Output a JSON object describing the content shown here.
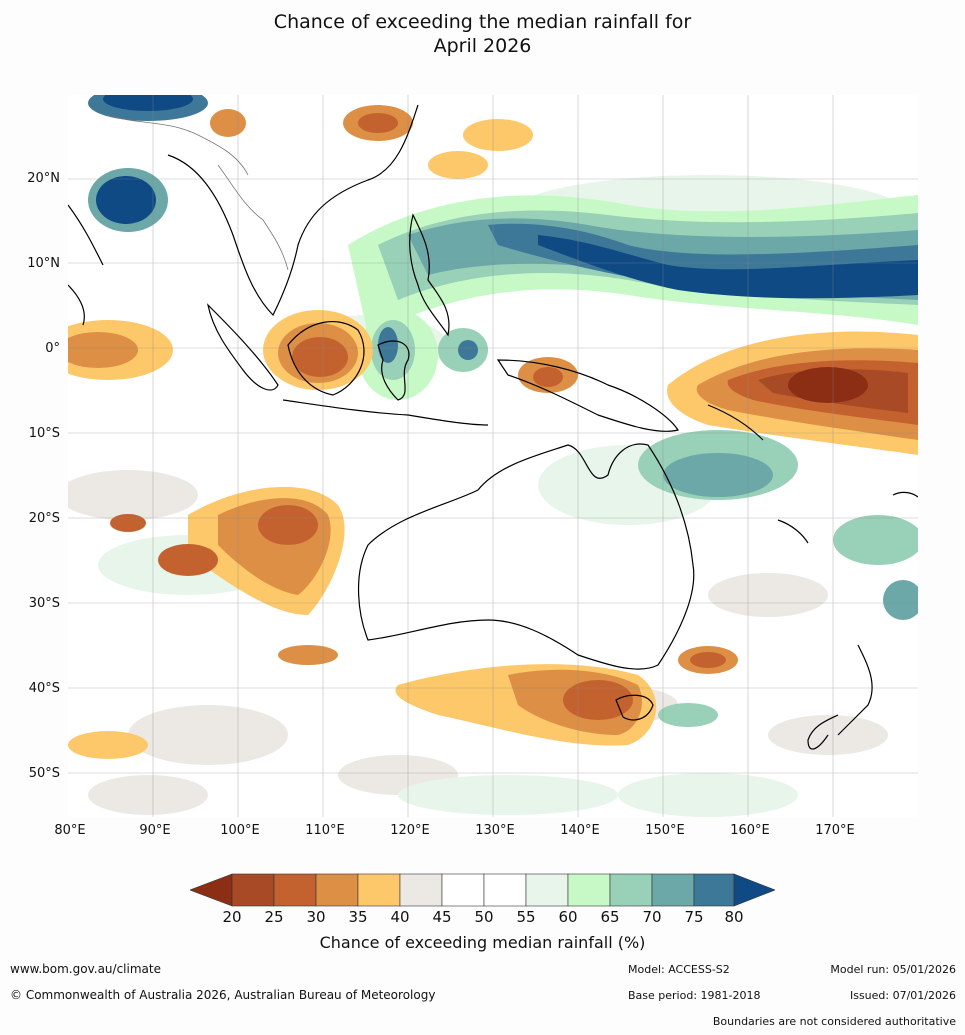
{
  "title": {
    "line1": "Chance of exceeding the median rainfall for",
    "line2": "April 2026"
  },
  "axes": {
    "latitude_labels": [
      "20°N",
      "10°N",
      "0°",
      "10°S",
      "20°S",
      "30°S",
      "40°S",
      "50°S"
    ],
    "longitude_labels": [
      "80°E",
      "90°E",
      "100°E",
      "110°E",
      "120°E",
      "130°E",
      "140°E",
      "150°E",
      "160°E",
      "170°E"
    ]
  },
  "colorbar": {
    "title": "Chance of exceeding median rainfall (%)",
    "ticks": [
      "20",
      "25",
      "30",
      "35",
      "40",
      "45",
      "50",
      "55",
      "60",
      "65",
      "70",
      "75",
      "80"
    ],
    "colors": [
      "#8b2e14",
      "#a84a25",
      "#c4622f",
      "#dc8f45",
      "#fdc86a",
      "#ece9e4",
      "#ffffff",
      "#ffffff",
      "#e8f5ea",
      "#c7f9c6",
      "#98d0b8",
      "#6ba8a7",
      "#3e7898",
      "#0f4a85"
    ]
  },
  "map_colors": {
    "dry_strong": "#a84a25",
    "dry_mid": "#c4622f",
    "dry_light": "#dc8f45",
    "dry_faint": "#fdc86a",
    "neutral": "#ece9e4",
    "wet_faint": "#e8f5ea",
    "wet_light": "#c7f9c6",
    "wet_mid": "#98d0b8",
    "wet_strong": "#6ba8a7",
    "wet_deep": "#3e7898",
    "wet_max": "#0f4a85"
  },
  "footer": {
    "website": "www.bom.gov.au/climate",
    "copyright": "© Commonwealth of Australia 2026, Australian Bureau of Meteorology",
    "model": "Model: ACCESS-S2",
    "base_period": "Base period: 1981-2018",
    "model_run": "Model run: 05/01/2026",
    "issued": "Issued: 07/01/2026",
    "disclaimer": "Boundaries are not considered authoritative"
  }
}
